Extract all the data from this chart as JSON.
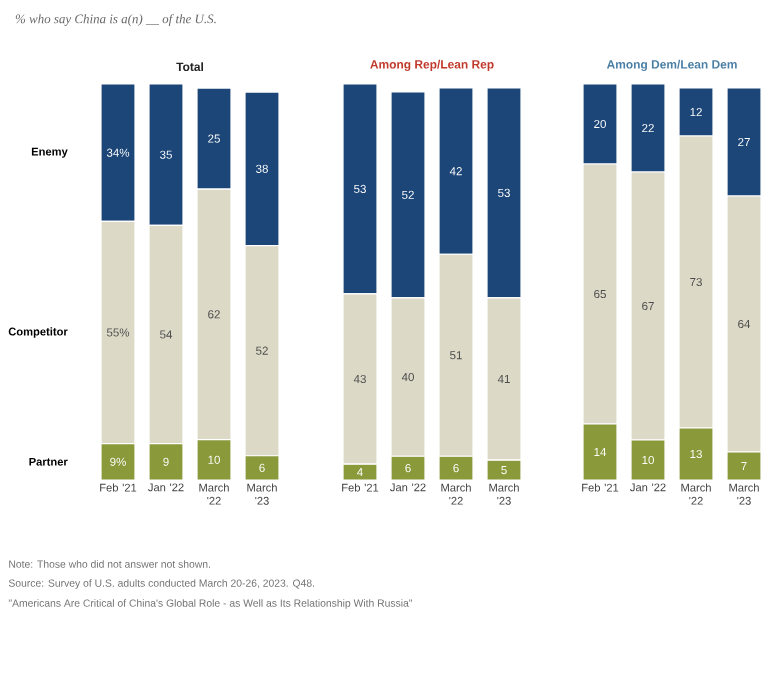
{
  "chart_data": [
    {
      "type": "bar",
      "stacked": true,
      "title": "Total",
      "subtitle": "% who say China is a(n) __ of the U.S.",
      "categories": [
        "Feb '21",
        "Jan '22",
        "March '22",
        "March '23"
      ],
      "tick_labels": "x",
      "series": [
        {
          "name": "Partner",
          "color": "#8a9a3b",
          "values": [
            9,
            9,
            10,
            6
          ],
          "value_labels": [
            "9%",
            "9",
            "10",
            "6"
          ]
        },
        {
          "name": "Competitor",
          "color": "#dcd9c7",
          "values": [
            55,
            54,
            62,
            52
          ],
          "value_labels": [
            "55%",
            "54",
            "62",
            "52"
          ]
        },
        {
          "name": "Enemy",
          "color": "#1d4678",
          "values": [
            34,
            35,
            25,
            38
          ],
          "value_labels": [
            "34%",
            "35",
            "25",
            "38"
          ]
        }
      ],
      "annotations": [
        "Note: Those who did not answer not shown.",
        "Source: Survey of U.S. adults conducted March 20-26, 2023. Q48.",
        "\"Americans Are Critical of China's Global Role - as Well as Its Relationship With Russia\""
      ]
    },
    {
      "type": "bar",
      "stacked": true,
      "title": "Among Rep/Lean Rep",
      "categories": [
        "Feb '21",
        "Jan '22",
        "March '22",
        "March '23"
      ],
      "tick_labels": "x",
      "data_labels": true,
      "series": [
        {
          "color": "#8a9a3b",
          "values": [
            4,
            6,
            6,
            5
          ]
        },
        {
          "color": "#dcd9c7",
          "values": [
            43,
            40,
            51,
            41
          ]
        },
        {
          "color": "#1d4678",
          "values": [
            53,
            52,
            42,
            53
          ]
        }
      ]
    },
    {
      "type": "bar",
      "stacked": true,
      "title": "Among Dem/Lean Dem",
      "categories": [
        "Feb '21",
        "Jan '22",
        "March '22",
        "March '23"
      ],
      "tick_labels": "x",
      "data_labels": true,
      "series": [
        {
          "color": "#8a9a3b",
          "values": [
            14,
            10,
            13,
            7
          ]
        },
        {
          "color": "#dcd9c7",
          "values": [
            65,
            67,
            73,
            64
          ]
        },
        {
          "color": "#1d4678",
          "values": [
            20,
            22,
            12,
            27
          ]
        }
      ]
    }
  ]
}
